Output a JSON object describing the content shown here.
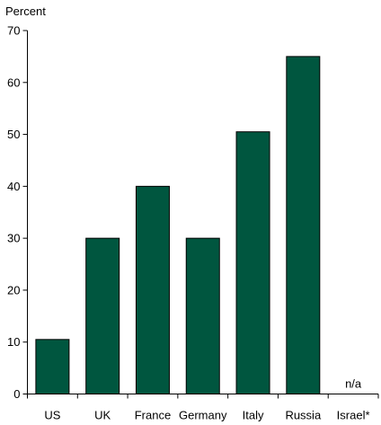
{
  "chart_data": {
    "type": "bar",
    "ylabel": "Percent",
    "categories": [
      "US",
      "UK",
      "France",
      "Germany",
      "Italy",
      "Russia",
      "Israel*"
    ],
    "values": [
      10.5,
      30,
      40,
      30,
      50.5,
      65,
      null
    ],
    "bar_annotations": [
      "",
      "",
      "",
      "",
      "",
      "",
      "n/a"
    ],
    "ylim": [
      0,
      70
    ],
    "yticks": [
      "0",
      "10",
      "20",
      "30",
      "40",
      "50",
      "60",
      "70"
    ],
    "bar_color": "#00563f",
    "grid": false,
    "legend": "none"
  }
}
